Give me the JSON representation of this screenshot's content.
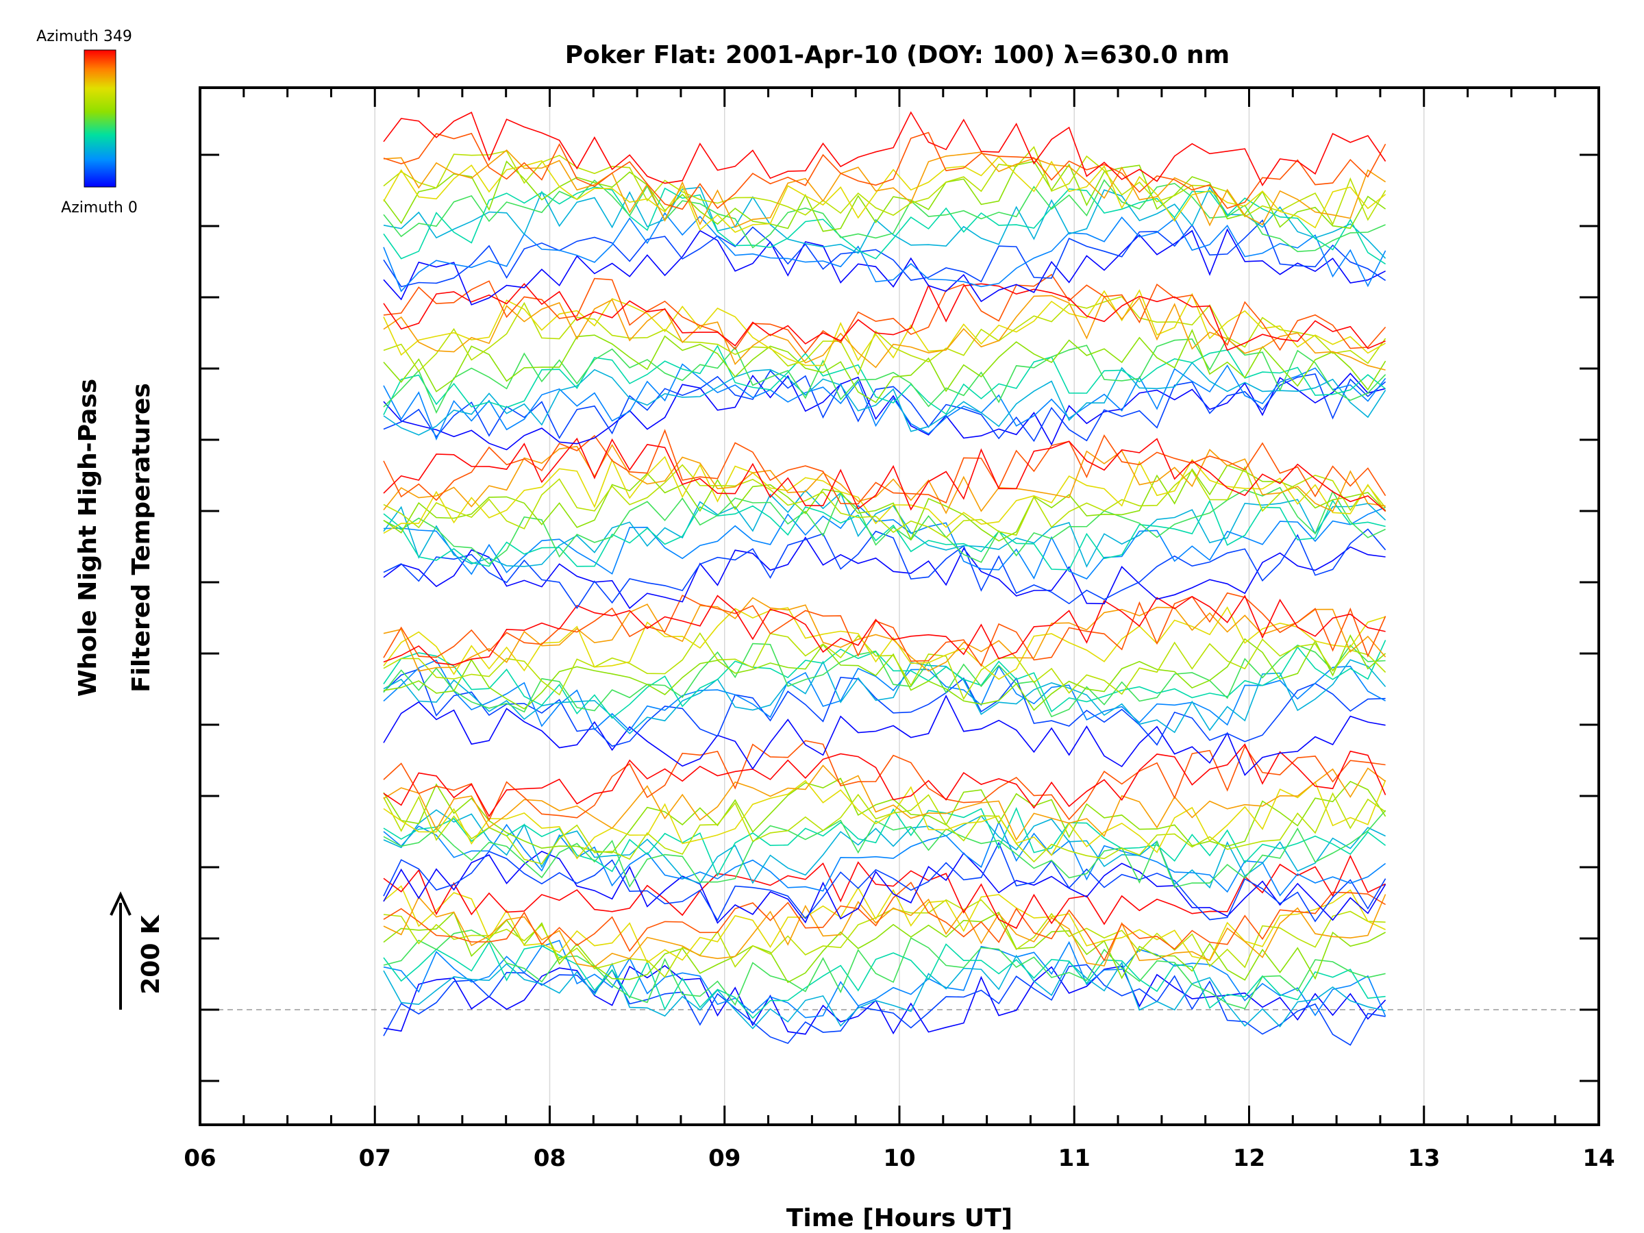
{
  "chart_data": {
    "type": "line",
    "title": "Poker Flat: 2001-Apr-10 (DOY: 100) λ=630.0 nm",
    "xlabel": "Time [Hours UT]",
    "ylabel_line1": "Whole Night High-Pass",
    "ylabel_line2": "Filtered Temperatures",
    "scale_label": "200 K",
    "xlim": [
      6,
      14
    ],
    "x_ticks": [
      "06",
      "07",
      "08",
      "09",
      "10",
      "11",
      "12",
      "13",
      "14"
    ],
    "grid": "vertical",
    "colorbar": {
      "top_label": "Azimuth 349",
      "bottom_label": "Azimuth 0",
      "placement": "top-left"
    },
    "colors": {
      "low_azimuth": "#1a2cff",
      "high_azimuth": "#ff1a1a"
    },
    "note": "",
    "series_groups": 6,
    "series_per_group": 12
  }
}
